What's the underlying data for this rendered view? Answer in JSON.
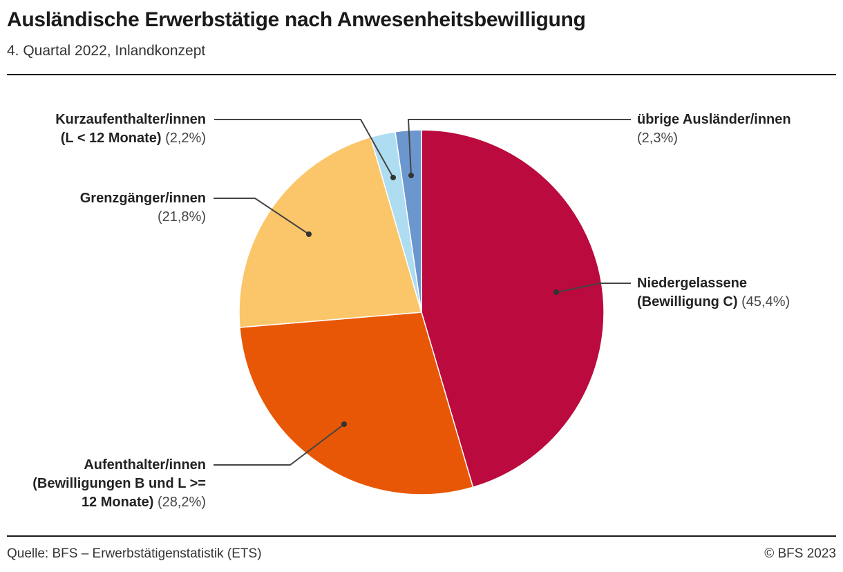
{
  "title": "Ausländische Erwerbstätige nach Anwesenheitsbewilligung",
  "subtitle": "4. Quartal 2022, Inlandkonzept",
  "source": "Quelle: BFS – Erwerbstätigenstatistik (ETS)",
  "copyright": "© BFS 2023",
  "chart_data": {
    "type": "pie",
    "start": "top",
    "direction": "clockwise",
    "slices": [
      {
        "name": "Niedergelassene (Bewilligung C)",
        "label_lines": [
          "Niedergelassene",
          "(Bewilligung C)"
        ],
        "pct_label": "(45,4%)",
        "value": 45.4,
        "color": "#BA0A3E"
      },
      {
        "name": "Aufenthalter/innen (Bewilligungen B und L >= 12 Monate)",
        "label_lines": [
          "Aufenthalter/innen",
          "(Bewilligungen B und L >=",
          "12 Monate)"
        ],
        "pct_label": "(28,2%)",
        "value": 28.2,
        "color": "#E85705"
      },
      {
        "name": "Grenzgänger/innen",
        "label_lines": [
          "Grenzgänger/innen"
        ],
        "pct_label": "(21,8%)",
        "value": 21.8,
        "color": "#FBC669"
      },
      {
        "name": "Kurzaufenthalter/innen (L < 12 Monate)",
        "label_lines": [
          "Kurzaufenthalter/innen",
          "(L < 12 Monate)"
        ],
        "pct_label": "(2,2%)",
        "value": 2.2,
        "color": "#AEDDF2"
      },
      {
        "name": "übrige Ausländer/innen",
        "label_lines": [
          "übrige Ausländer/innen"
        ],
        "pct_label": "(2,3%)",
        "value": 2.3,
        "color": "#6C96CE"
      }
    ]
  }
}
